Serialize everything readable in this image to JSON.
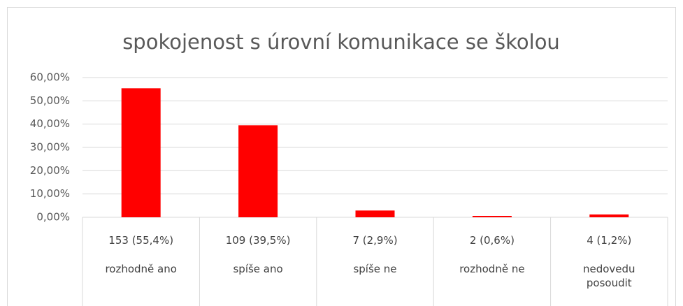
{
  "chart_data": {
    "type": "bar",
    "title": "spokojenost s úrovní komunikace se školou",
    "categories": [
      [
        "153 (55,4%)",
        "rozhodně ano"
      ],
      [
        "109 (39,5%)",
        "spíše ano"
      ],
      [
        "7 (2,9%)",
        "spíše ne"
      ],
      [
        "2 (0,6%)",
        "rozhodně ne"
      ],
      [
        "4 (1,2%)",
        "nedovedu posoudit"
      ]
    ],
    "values": [
      55.4,
      39.5,
      2.9,
      0.6,
      1.2
    ],
    "color": "#ff0000",
    "ylim": [
      0,
      60
    ],
    "yticks": [
      {
        "value": 0,
        "label": "0,00%"
      },
      {
        "value": 10,
        "label": "10,00%"
      },
      {
        "value": 20,
        "label": "20,00%"
      },
      {
        "value": 30,
        "label": "30,00%"
      },
      {
        "value": 40,
        "label": "40,00%"
      },
      {
        "value": 50,
        "label": "50,00%"
      },
      {
        "value": 60,
        "label": "60,00%"
      }
    ],
    "grid": true
  }
}
